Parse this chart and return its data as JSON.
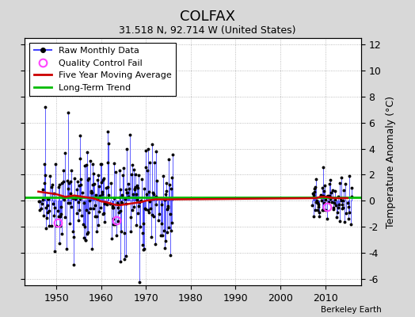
{
  "title": "COLFAX",
  "subtitle": "31.518 N, 92.714 W (United States)",
  "credit": "Berkeley Earth",
  "xlim": [
    1943,
    2018
  ],
  "ylim": [
    -6,
    12
  ],
  "yticks_right": [
    -6,
    -4,
    -2,
    0,
    2,
    4,
    6,
    8,
    10,
    12
  ],
  "xticks": [
    1950,
    1960,
    1970,
    1980,
    1990,
    2000,
    2010
  ],
  "ylabel": "Temperature Anomaly (°C)",
  "bg_color": "#d8d8d8",
  "plot_bg": "#ffffff",
  "raw_line_color": "#4444ff",
  "raw_dot_color": "#000000",
  "ma_color": "#cc0000",
  "trend_color": "#00bb00",
  "qc_color": "#ff44ff",
  "trend_y_val": 0.28,
  "qc_points": {
    "years": [
      1950.3,
      1963.5,
      2010.5
    ],
    "values": [
      -1.7,
      -1.5,
      -0.5
    ]
  },
  "ma_x": [
    1946,
    1947,
    1948,
    1949,
    1950,
    1951,
    1952,
    1953,
    1954,
    1955,
    1956,
    1957,
    1958,
    1959,
    1960,
    1961,
    1962,
    1963,
    1964,
    1965,
    1966,
    1967,
    1968,
    1969,
    1970,
    1971,
    1972,
    1973,
    1974,
    1975,
    2008,
    2009,
    2010,
    2011,
    2012,
    2013,
    2014,
    2015
  ],
  "ma_y": [
    0.7,
    0.65,
    0.6,
    0.55,
    0.5,
    0.4,
    0.3,
    0.35,
    0.4,
    0.35,
    0.3,
    0.25,
    0.2,
    0.1,
    -0.05,
    -0.1,
    -0.2,
    -0.3,
    -0.35,
    -0.3,
    -0.25,
    -0.2,
    -0.15,
    -0.1,
    0.0,
    0.05,
    0.1,
    0.1,
    0.1,
    0.1,
    0.2,
    0.3,
    0.3,
    0.25,
    0.2,
    0.2,
    0.2,
    0.2
  ]
}
